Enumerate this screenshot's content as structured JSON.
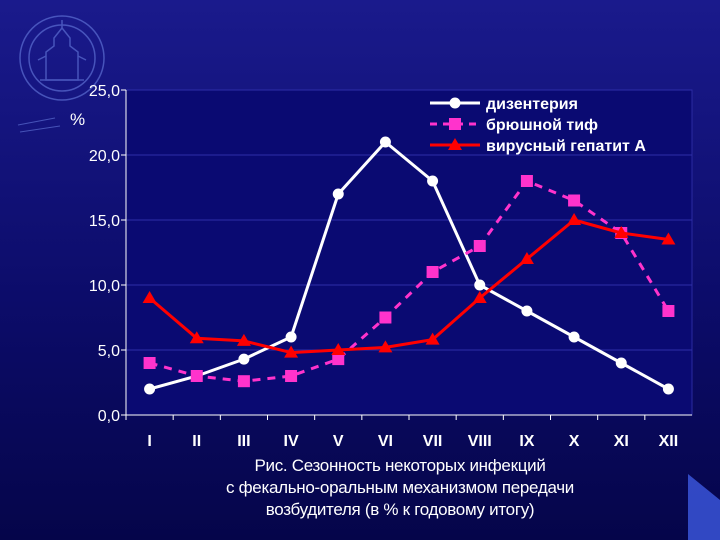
{
  "chart_data": {
    "type": "line",
    "ylabel": "%",
    "ylim": [
      0,
      25
    ],
    "yticks": [
      "0,0",
      "5,0",
      "10,0",
      "15,0",
      "20,0",
      "25,0"
    ],
    "ytick_values": [
      0,
      5,
      10,
      15,
      20,
      25
    ],
    "categories": [
      "I",
      "II",
      "III",
      "IV",
      "V",
      "VI",
      "VII",
      "VIII",
      "IX",
      "X",
      "XI",
      "XII"
    ],
    "legend_position": "top-right",
    "series": [
      {
        "name": "дизентерия",
        "color": "#ffffff",
        "style": "solid",
        "marker": "circle",
        "values": [
          2.0,
          3.0,
          4.3,
          6.0,
          17.0,
          21.0,
          18.0,
          10.0,
          8.0,
          6.0,
          4.0,
          2.0
        ]
      },
      {
        "name": "брюшной тиф",
        "color": "#ff33cc",
        "style": "dashed",
        "marker": "square",
        "values": [
          4.0,
          3.0,
          2.6,
          3.0,
          4.3,
          7.5,
          11.0,
          13.0,
          18.0,
          16.5,
          14.0,
          8.0
        ]
      },
      {
        "name": "вирусный гепатит А",
        "color": "#ff0000",
        "style": "solid",
        "marker": "triangle",
        "values": [
          9.0,
          5.9,
          5.7,
          4.8,
          5.0,
          5.2,
          5.8,
          9.0,
          12.0,
          15.0,
          14.0,
          13.5
        ]
      }
    ]
  },
  "caption": {
    "line1": "Рис. Сезонность некоторых инфекций",
    "line2": "с фекально-оральным механизмом передачи",
    "line3": "возбудителя (в % к годовому итогу)"
  }
}
